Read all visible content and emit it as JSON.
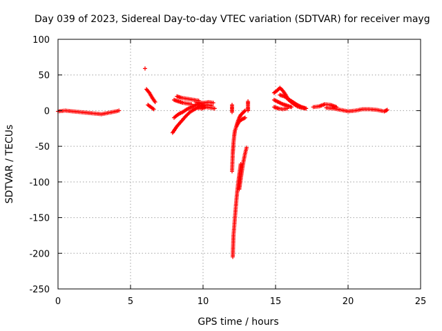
{
  "chart_data": {
    "type": "scatter",
    "title": "Day 039 of 2023, Sidereal Day-to-day VTEC variation (SDTVAR) for receiver mayg",
    "xlabel": "GPS time / hours",
    "ylabel": "SDTVAR / TECUs",
    "xlim": [
      0,
      25
    ],
    "ylim": [
      -250,
      100
    ],
    "xticks": [
      0,
      5,
      10,
      15,
      20,
      25
    ],
    "yticks": [
      -250,
      -200,
      -150,
      -100,
      -50,
      0,
      50,
      100
    ],
    "grid": true,
    "marker": "+",
    "series": [
      {
        "name": "SDTVAR",
        "color": "#ff0000",
        "segments": [
          {
            "x": [
              0.0,
              0.5,
              1.0,
              1.5,
              2.0,
              2.5,
              3.0,
              3.5,
              4.0,
              4.2
            ],
            "y": [
              -1,
              0,
              -1,
              -2,
              -3,
              -4,
              -5,
              -3,
              -1,
              0
            ]
          },
          {
            "x": [
              6.0
            ],
            "y": [
              59
            ]
          },
          {
            "x": [
              6.1,
              6.3,
              6.5,
              6.7
            ],
            "y": [
              30,
              25,
              18,
              12
            ]
          },
          {
            "x": [
              6.2,
              6.4,
              6.6
            ],
            "y": [
              8,
              5,
              2
            ]
          },
          {
            "x": [
              7.9,
              8.2,
              8.5,
              8.8,
              9.1,
              9.5,
              9.8,
              10.1
            ],
            "y": [
              -31,
              -22,
              -15,
              -8,
              -2,
              3,
              6,
              8
            ]
          },
          {
            "x": [
              8.0,
              8.3,
              8.6,
              8.9,
              9.2,
              9.5,
              9.8
            ],
            "y": [
              -10,
              -5,
              -2,
              2,
              5,
              8,
              10
            ]
          },
          {
            "x": [
              8.2,
              8.5,
              8.8,
              9.1,
              9.4,
              9.7
            ],
            "y": [
              20,
              18,
              17,
              16,
              15,
              14
            ]
          },
          {
            "x": [
              8.0,
              8.3,
              8.6,
              8.9,
              9.2
            ],
            "y": [
              15,
              13,
              11,
              10,
              9
            ]
          },
          {
            "x": [
              9.5,
              9.8,
              10.1,
              10.4,
              10.7
            ],
            "y": [
              12,
              11,
              11,
              12,
              11
            ]
          },
          {
            "x": [
              9.6,
              9.9,
              10.2,
              10.5,
              10.8
            ],
            "y": [
              4,
              3,
              5,
              4,
              3
            ]
          },
          {
            "x": [
              9.7,
              10.0,
              10.3,
              10.6
            ],
            "y": [
              8,
              7,
              8,
              7
            ]
          },
          {
            "x": [
              12.0,
              12.0,
              12.0
            ],
            "y": [
              8,
              3,
              -2
            ]
          },
          {
            "x": [
              12.0,
              12.05,
              12.1,
              12.15,
              12.2,
              12.3,
              12.4,
              12.5,
              12.6,
              12.7,
              12.8,
              12.9
            ],
            "y": [
              -85,
              -60,
              -45,
              -35,
              -28,
              -22,
              -15,
              -10,
              -6,
              -4,
              -2,
              0
            ]
          },
          {
            "x": [
              12.05,
              12.1,
              12.2,
              12.3,
              12.4,
              12.5,
              12.6
            ],
            "y": [
              -205,
              -175,
              -150,
              -125,
              -105,
              -90,
              -75
            ]
          },
          {
            "x": [
              12.5,
              12.6,
              12.7,
              12.8,
              12.9,
              13.0
            ],
            "y": [
              -110,
              -95,
              -82,
              -70,
              -60,
              -52
            ]
          },
          {
            "x": [
              12.3,
              12.5,
              12.7,
              12.9
            ],
            "y": [
              -22,
              -15,
              -12,
              -10
            ]
          },
          {
            "x": [
              13.1,
              13.1,
              13.1,
              13.1
            ],
            "y": [
              13,
              8,
              3,
              0
            ]
          },
          {
            "x": [
              14.9,
              15.1,
              15.3,
              15.5,
              15.7,
              15.9,
              16.2,
              16.5,
              16.8,
              17.1
            ],
            "y": [
              25,
              28,
              32,
              28,
              22,
              15,
              10,
              6,
              4,
              3
            ]
          },
          {
            "x": [
              14.9,
              15.2,
              15.5,
              15.8,
              16.1
            ],
            "y": [
              15,
              12,
              9,
              7,
              5
            ]
          },
          {
            "x": [
              14.9,
              15.2,
              15.5,
              15.8
            ],
            "y": [
              5,
              3,
              2,
              3
            ]
          },
          {
            "x": [
              15.3,
              15.6,
              15.9,
              16.2,
              16.5,
              16.8,
              17.1
            ],
            "y": [
              22,
              20,
              16,
              12,
              8,
              5,
              3
            ]
          },
          {
            "x": [
              17.6,
              18.0,
              18.4,
              18.8,
              19.2
            ],
            "y": [
              5,
              6,
              9,
              8,
              5
            ]
          },
          {
            "x": [
              18.5,
              19.0,
              19.5,
              20.0,
              20.5,
              21.0,
              21.5,
              22.0,
              22.5,
              22.7
            ],
            "y": [
              4,
              3,
              1,
              -1,
              0,
              2,
              2,
              1,
              -1,
              1
            ]
          }
        ]
      }
    ]
  }
}
